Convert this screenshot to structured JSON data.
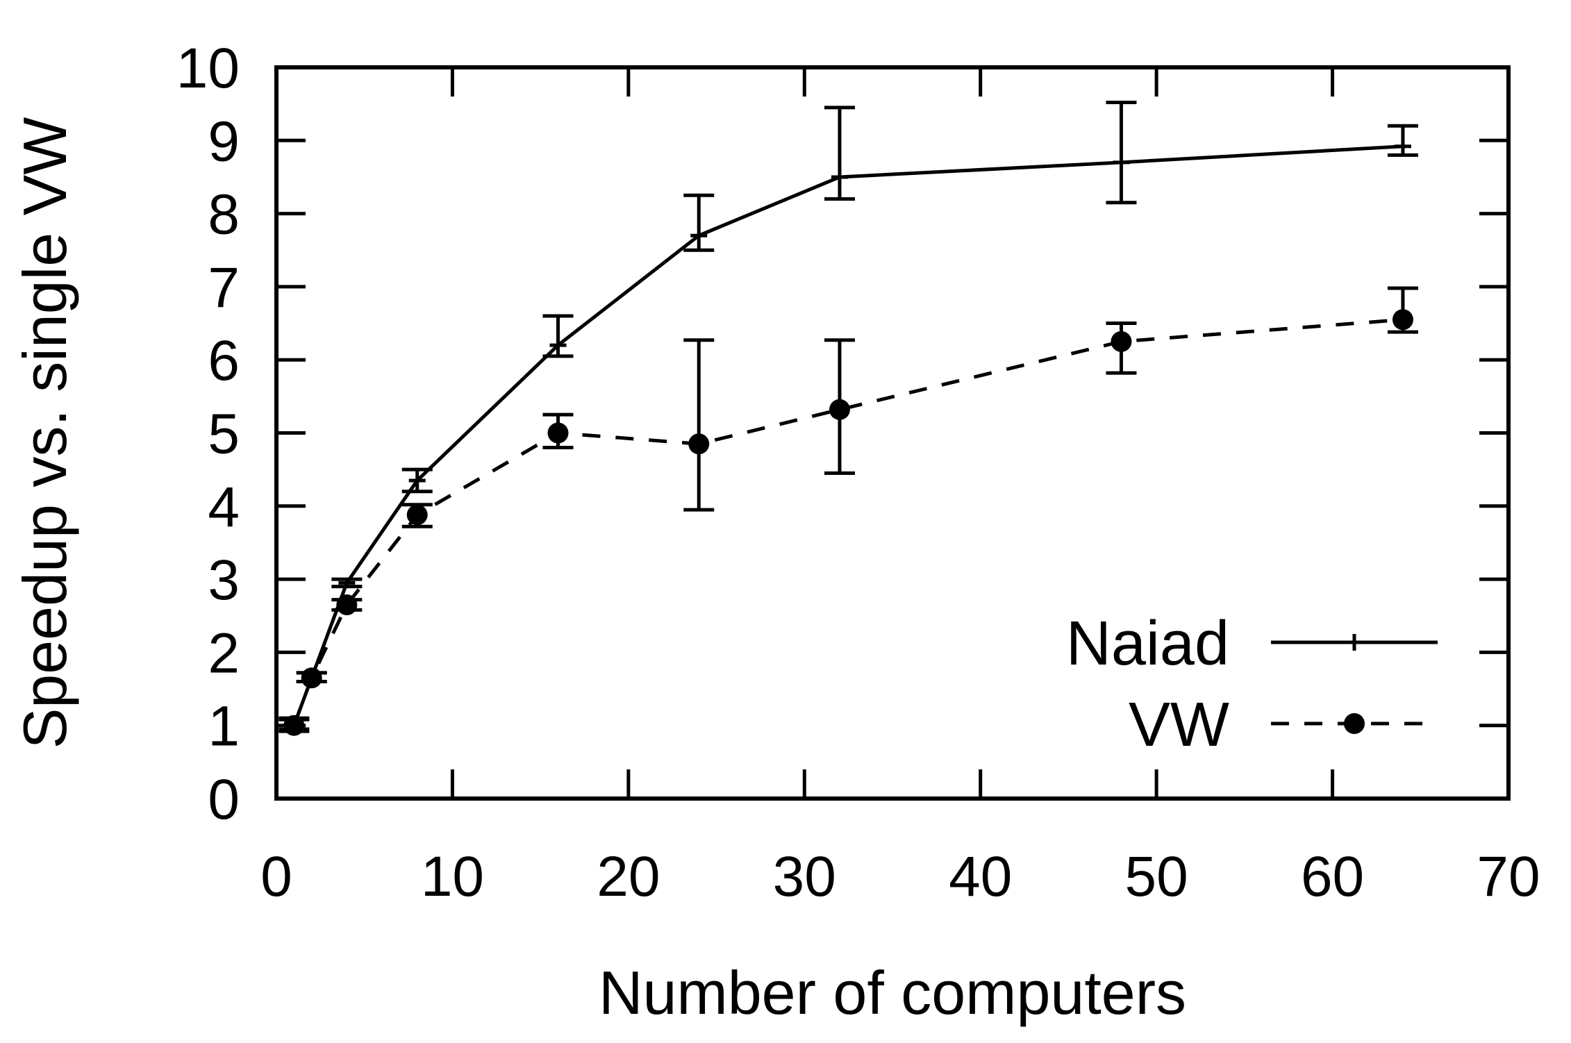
{
  "chart_data": {
    "type": "line",
    "title": "",
    "xlabel": "Number of computers",
    "ylabel": "Speedup vs. single VW",
    "xlim": [
      0,
      70
    ],
    "ylim": [
      0,
      10
    ],
    "xticks": [
      0,
      10,
      20,
      30,
      40,
      50,
      60,
      70
    ],
    "yticks": [
      0,
      1,
      2,
      3,
      4,
      5,
      6,
      7,
      8,
      9,
      10
    ],
    "xtick_labels": [
      "0",
      "10",
      "20",
      "30",
      "40",
      "50",
      "60",
      "70"
    ],
    "ytick_labels": [
      "0",
      "1",
      "2",
      "3",
      "4",
      "5",
      "6",
      "7",
      "8",
      "9",
      "10"
    ],
    "grid": false,
    "legend_position": "bottom-right",
    "series": [
      {
        "name": "Naiad",
        "line": "solid",
        "marker": "plus",
        "x": [
          1,
          2,
          4,
          8,
          16,
          24,
          32,
          48,
          64
        ],
        "y": [
          1.0,
          1.65,
          2.95,
          4.35,
          6.2,
          7.7,
          8.5,
          8.7,
          8.92
        ],
        "err_low": [
          0.95,
          1.6,
          2.9,
          4.2,
          6.05,
          7.5,
          8.2,
          8.15,
          8.8
        ],
        "err_high": [
          1.1,
          1.72,
          3.0,
          4.5,
          6.6,
          8.25,
          9.45,
          9.52,
          9.2
        ]
      },
      {
        "name": "VW",
        "line": "dashed",
        "marker": "circle",
        "x": [
          1,
          2,
          4,
          8,
          16,
          24,
          32,
          48,
          64
        ],
        "y": [
          1.0,
          1.65,
          2.65,
          3.88,
          5.0,
          4.85,
          5.32,
          6.25,
          6.55
        ],
        "err_low": [
          0.92,
          1.6,
          2.58,
          3.72,
          4.8,
          3.95,
          4.45,
          5.82,
          6.38
        ],
        "err_high": [
          1.08,
          1.72,
          2.72,
          4.02,
          5.25,
          6.27,
          6.27,
          6.5,
          6.98
        ]
      }
    ]
  }
}
